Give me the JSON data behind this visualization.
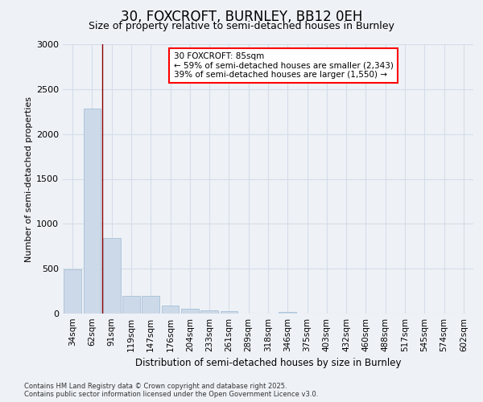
{
  "title": "30, FOXCROFT, BURNLEY, BB12 0EH",
  "subtitle": "Size of property relative to semi-detached houses in Burnley",
  "xlabel": "Distribution of semi-detached houses by size in Burnley",
  "ylabel": "Number of semi-detached properties",
  "categories": [
    "34sqm",
    "62sqm",
    "91sqm",
    "119sqm",
    "147sqm",
    "176sqm",
    "204sqm",
    "233sqm",
    "261sqm",
    "289sqm",
    "318sqm",
    "346sqm",
    "375sqm",
    "403sqm",
    "432sqm",
    "460sqm",
    "488sqm",
    "517sqm",
    "545sqm",
    "574sqm",
    "602sqm"
  ],
  "values": [
    490,
    2280,
    840,
    200,
    200,
    90,
    55,
    40,
    25,
    0,
    0,
    20,
    0,
    0,
    0,
    0,
    0,
    0,
    0,
    0,
    0
  ],
  "bar_color": "#ccd9e8",
  "bar_edge_color": "#a8c0d8",
  "grid_color": "#d5dde8",
  "annotation_text": "30 FOXCROFT: 85sqm\n← 59% of semi-detached houses are smaller (2,343)\n39% of semi-detached houses are larger (1,550) →",
  "red_line_x": 1.5,
  "ylim": [
    0,
    3000
  ],
  "yticks": [
    0,
    500,
    1000,
    1500,
    2000,
    2500,
    3000
  ],
  "footer_line1": "Contains HM Land Registry data © Crown copyright and database right 2025.",
  "footer_line2": "Contains public sector information licensed under the Open Government Licence v3.0.",
  "bg_color": "#eef2f7",
  "plot_bg_color": "#eef2f7",
  "title_fontsize": 12,
  "subtitle_fontsize": 9,
  "axis_label_fontsize": 8,
  "tick_fontsize": 7.5,
  "footer_fontsize": 6
}
